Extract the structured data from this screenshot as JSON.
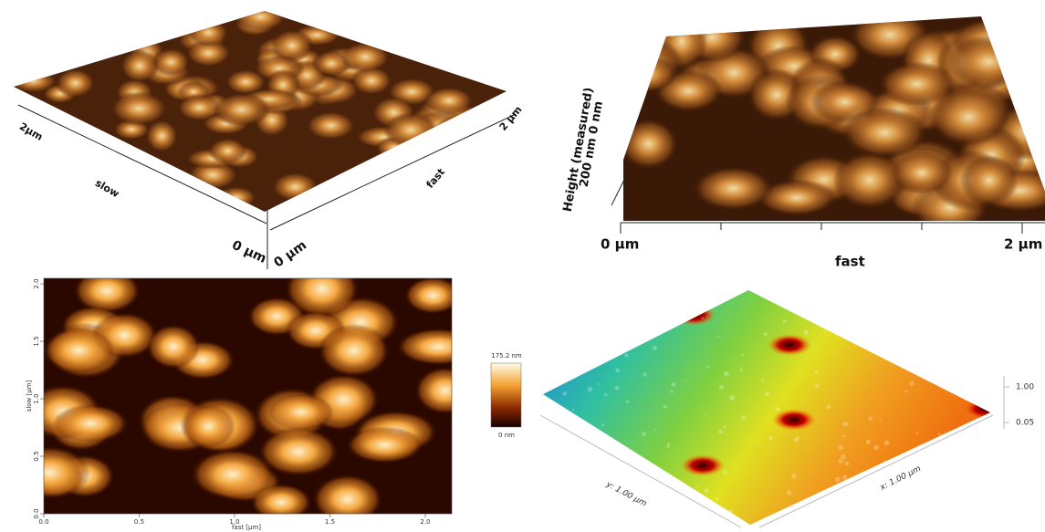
{
  "panels": [
    {
      "labels": {
        "y_end": "2µm",
        "y_axis": "slow",
        "x_axis": "fast",
        "x_end": "2 µm",
        "y_origin": "0 µm",
        "x_origin": "0 µm"
      }
    },
    {
      "labels": {
        "z_scale": "200 nm 0 nm",
        "z_axis": "Height (measured)",
        "x_origin": "0 µm",
        "x_end": "2 µm",
        "x_axis": "fast"
      }
    },
    {
      "y_ticks": [
        "0.0",
        "0.5",
        "1.0",
        "1.5",
        "2.0"
      ],
      "y_axis": "slow [µm]",
      "x_ticks": [
        "0.0",
        "0.5",
        "1.0",
        "1.5",
        "2.0"
      ],
      "x_axis": "fast [µm]",
      "colorbar": {
        "max": "175.2 nm",
        "min": "0 nm"
      }
    },
    {
      "labels": {
        "y_axis": "y: 1.00 µm",
        "x_axis": "x: 1.00 µm",
        "z_top": "1.00",
        "z_bottom": "0.05"
      }
    }
  ]
}
